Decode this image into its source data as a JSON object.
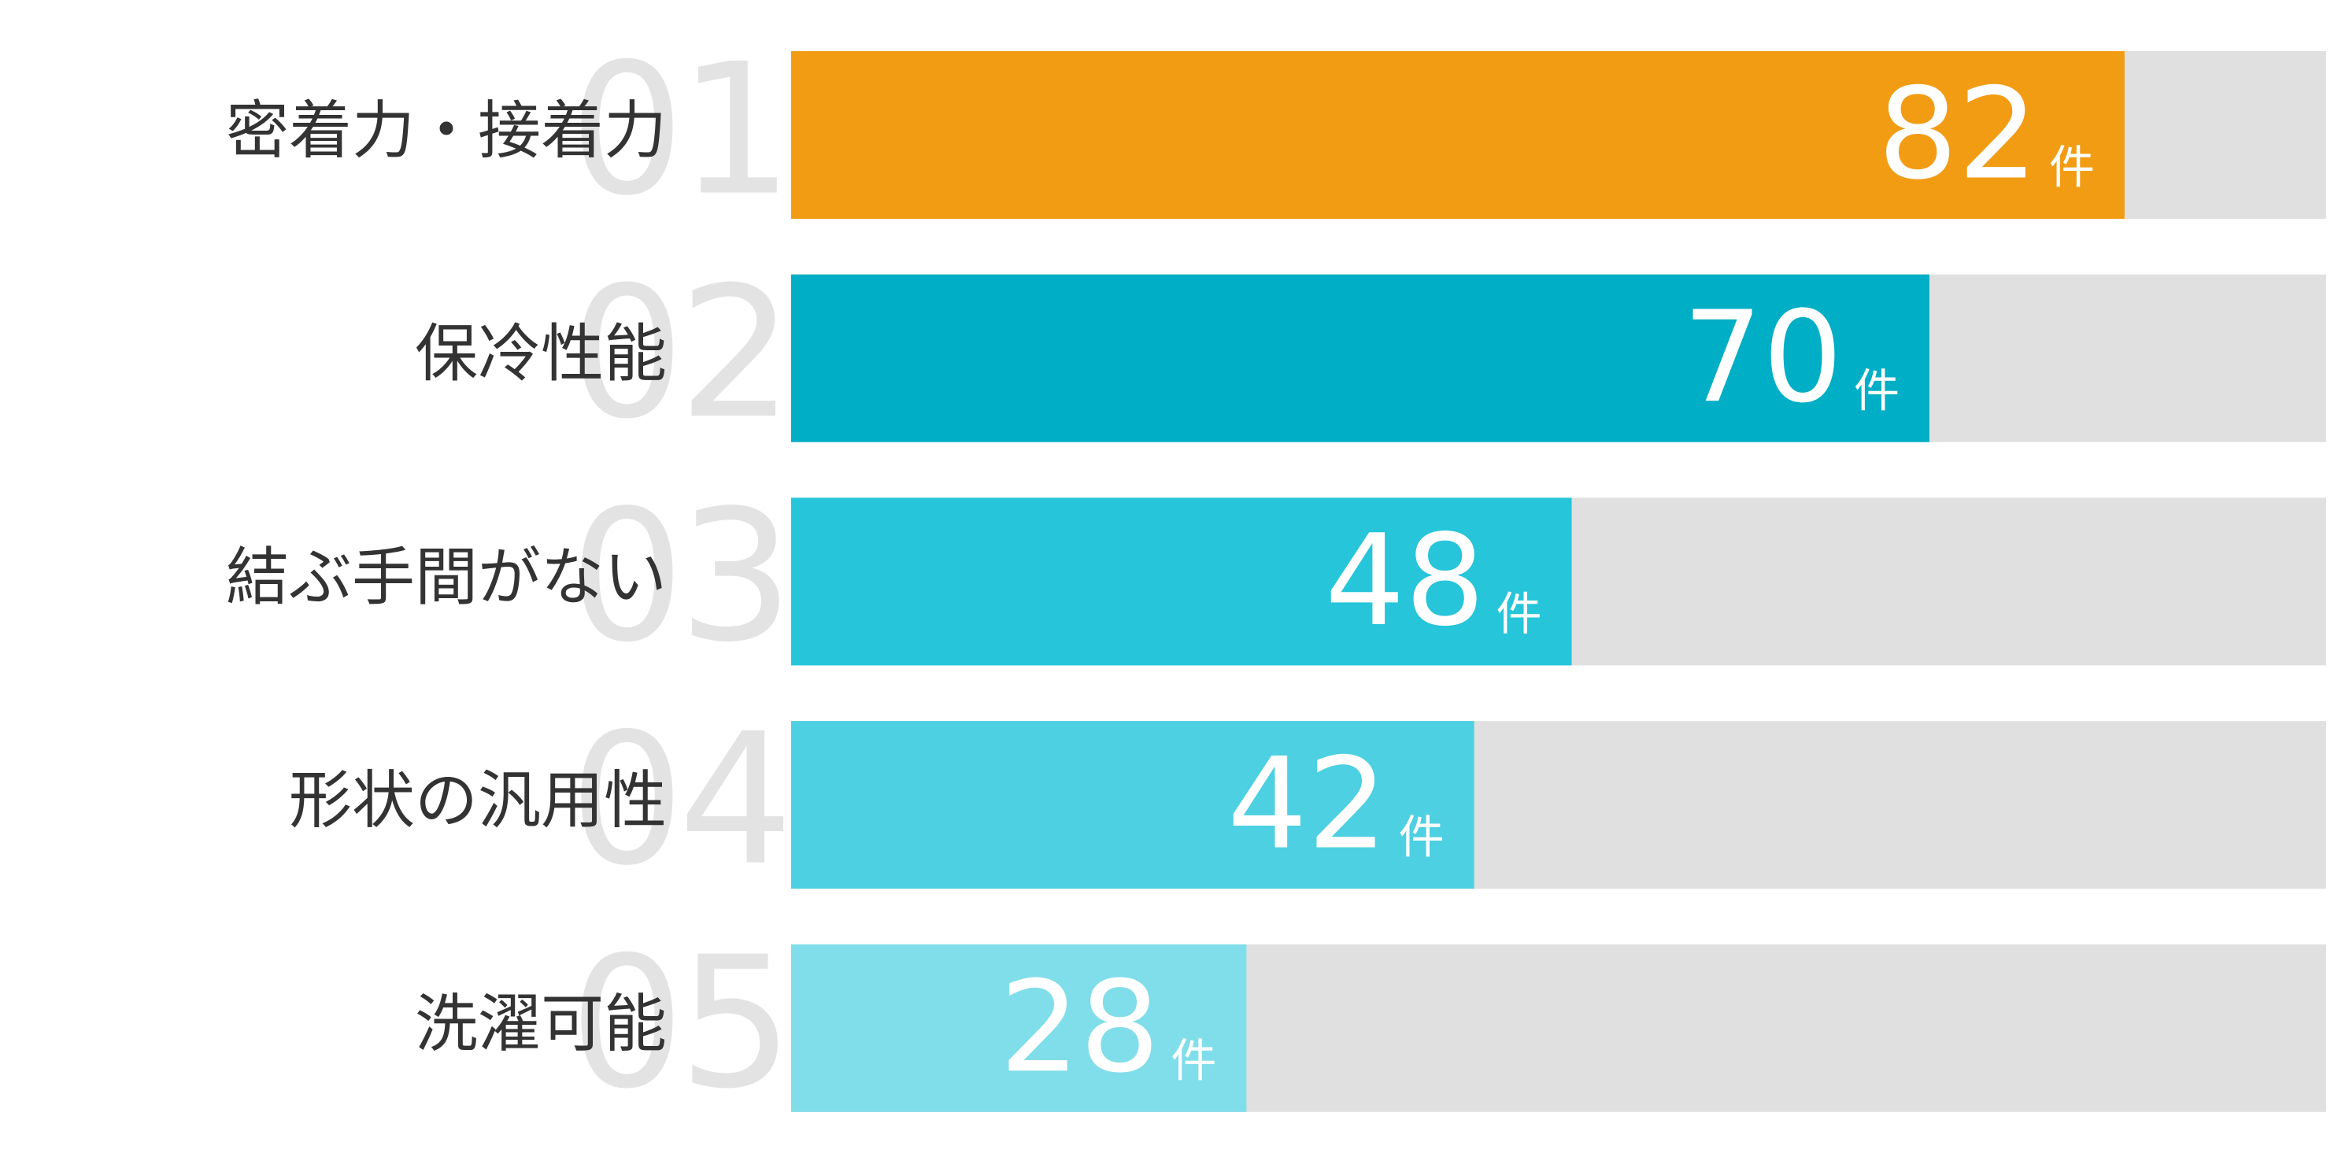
{
  "chart_data": {
    "type": "bar",
    "orientation": "horizontal",
    "categories": [
      "密着力・接着力",
      "保冷性能",
      "結ぶ手間がない",
      "形状の汎用性",
      "洗濯可能"
    ],
    "ranks": [
      "01",
      "02",
      "03",
      "04",
      "05"
    ],
    "values": [
      82,
      70,
      48,
      42,
      28
    ],
    "unit": "件",
    "colors": [
      "#f29c14",
      "#00aec5",
      "#26c5d9",
      "#4dd0e1",
      "#80deea"
    ],
    "track_color": "#e0e0e0",
    "xlim": [
      0,
      94.4
    ]
  }
}
